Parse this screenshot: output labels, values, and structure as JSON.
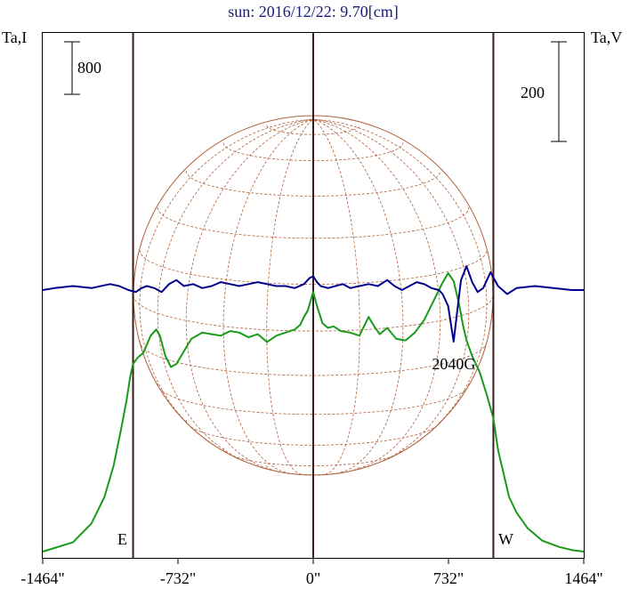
{
  "chart_data": {
    "type": "line",
    "title": "sun: 2016/12/22: 9.70[cm]",
    "left_axis_label": "Ta,I",
    "right_axis_label": "Ta,V",
    "left_scale_bar_label": "800",
    "right_scale_bar_label": "200",
    "x_ticks": [
      {
        "value": -1464,
        "label": "-1464\""
      },
      {
        "value": -732,
        "label": "-732\""
      },
      {
        "value": 0,
        "label": "0\""
      },
      {
        "value": 732,
        "label": "732\""
      },
      {
        "value": 1464,
        "label": "1464\""
      }
    ],
    "xlim": [
      -1464,
      1464
    ],
    "limb_lines": [
      {
        "value": -975,
        "label": "E"
      },
      {
        "value": 0,
        "label": ""
      },
      {
        "value": 975,
        "label": "W"
      }
    ],
    "annotations": [
      {
        "x": 760,
        "text": "2040G"
      }
    ],
    "colors": {
      "intensity": "#1a9a1a",
      "polarization": "#00008b",
      "disk": "#b0603a",
      "limb": "#3a1a1a",
      "title": "#1a1a80"
    },
    "series": [
      {
        "key": "I",
        "x": [
          -1464,
          -1300,
          -1200,
          -1130,
          -1080,
          -1040,
          -1010,
          -990,
          -975,
          -950,
          -920,
          -880,
          -850,
          -830,
          -800,
          -770,
          -740,
          -700,
          -660,
          -600,
          -550,
          -500,
          -450,
          -400,
          -350,
          -300,
          -250,
          -200,
          -150,
          -100,
          -70,
          -50,
          -30,
          -10,
          0,
          20,
          50,
          80,
          110,
          150,
          200,
          250,
          300,
          330,
          360,
          400,
          450,
          500,
          550,
          600,
          650,
          700,
          730,
          760,
          790,
          810,
          830,
          860,
          900,
          940,
          975,
          1000,
          1030,
          1060,
          1100,
          1160,
          1240,
          1330,
          1400,
          1464
        ],
        "y": [
          0.0,
          0.06,
          0.18,
          0.35,
          0.55,
          0.78,
          0.97,
          1.12,
          1.2,
          1.24,
          1.27,
          1.38,
          1.42,
          1.38,
          1.25,
          1.18,
          1.2,
          1.28,
          1.36,
          1.4,
          1.39,
          1.38,
          1.41,
          1.4,
          1.37,
          1.39,
          1.34,
          1.38,
          1.4,
          1.42,
          1.45,
          1.5,
          1.54,
          1.62,
          1.66,
          1.57,
          1.46,
          1.43,
          1.44,
          1.41,
          1.4,
          1.38,
          1.5,
          1.44,
          1.39,
          1.43,
          1.36,
          1.35,
          1.4,
          1.48,
          1.6,
          1.72,
          1.78,
          1.73,
          1.58,
          1.45,
          1.35,
          1.25,
          1.15,
          1.0,
          0.85,
          0.65,
          0.5,
          0.35,
          0.25,
          0.15,
          0.07,
          0.03,
          0.01,
          0.0
        ]
      },
      {
        "key": "V",
        "x": [
          -1464,
          -1400,
          -1300,
          -1200,
          -1100,
          -1050,
          -1000,
          -960,
          -930,
          -900,
          -860,
          -820,
          -780,
          -740,
          -700,
          -650,
          -600,
          -550,
          -500,
          -450,
          -400,
          -350,
          -300,
          -250,
          -200,
          -150,
          -100,
          -50,
          -20,
          0,
          20,
          40,
          80,
          120,
          160,
          200,
          250,
          300,
          350,
          400,
          440,
          480,
          520,
          560,
          600,
          640,
          680,
          700,
          730,
          760,
          780,
          800,
          830,
          860,
          890,
          920,
          960,
          1000,
          1050,
          1100,
          1200,
          1300,
          1400,
          1464
        ],
        "y": [
          0.0,
          0.01,
          0.02,
          0.01,
          0.03,
          0.02,
          0.0,
          -0.01,
          0.01,
          0.02,
          0.01,
          -0.01,
          0.03,
          0.05,
          0.02,
          0.03,
          0.01,
          0.02,
          0.04,
          0.03,
          0.02,
          0.03,
          0.04,
          0.03,
          0.02,
          0.02,
          0.01,
          0.03,
          0.06,
          0.07,
          0.04,
          0.02,
          0.01,
          0.02,
          0.03,
          0.01,
          0.02,
          0.03,
          0.02,
          0.05,
          0.02,
          0.0,
          0.02,
          0.04,
          0.03,
          0.01,
          0.0,
          -0.02,
          -0.08,
          -0.26,
          -0.1,
          0.05,
          0.12,
          0.04,
          -0.01,
          0.01,
          0.09,
          0.02,
          -0.02,
          0.01,
          0.02,
          0.01,
          0.0,
          0.0
        ]
      }
    ]
  }
}
